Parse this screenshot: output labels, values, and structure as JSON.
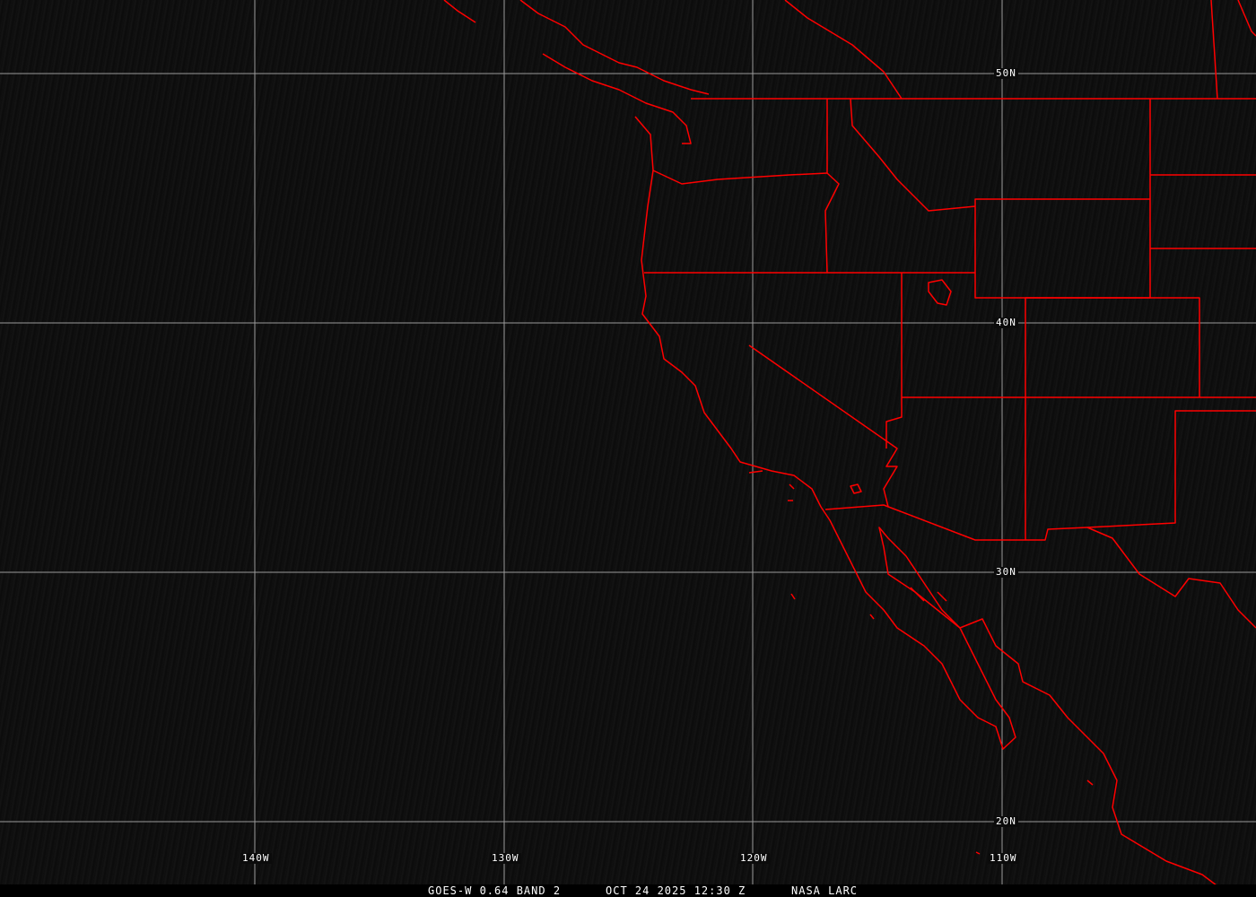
{
  "map": {
    "background_color": "#0b0b0b",
    "grid_color": "#9a9a9a",
    "boundary_color": "#ff0000",
    "latitude_labels": [
      "50N",
      "40N",
      "30N",
      "20N"
    ],
    "longitude_labels": [
      "140W",
      "130W",
      "120W",
      "110W"
    ]
  },
  "caption": {
    "product": "GOES-W 0.64 BAND 2",
    "datetime": "OCT 24 2025 12:30 Z",
    "source": "NASA LARC"
  }
}
